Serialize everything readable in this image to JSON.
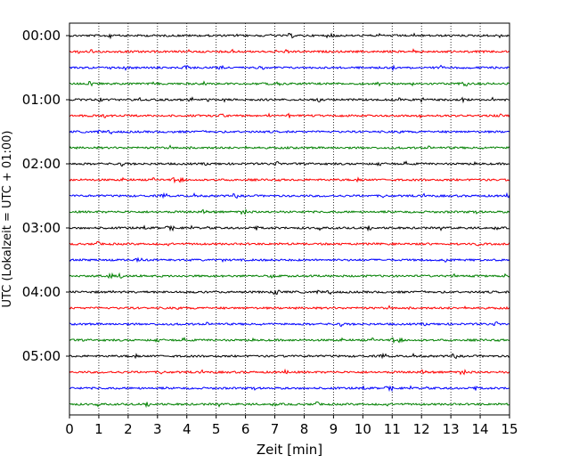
{
  "chart_data": {
    "type": "line",
    "subtype": "helicorder",
    "title": "",
    "xlabel": "Zeit  [min]",
    "ylabel": "UTC (Lokalzeit = UTC + 01:00)",
    "xlim": [
      0,
      15
    ],
    "x_ticks": [
      "0",
      "1",
      "2",
      "3",
      "4",
      "5",
      "6",
      "7",
      "8",
      "9",
      "10",
      "11",
      "12",
      "13",
      "14",
      "15"
    ],
    "y_tick_labels": [
      "00:00",
      "01:00",
      "02:00",
      "03:00",
      "04:00",
      "05:00"
    ],
    "trace_interval_min": 15,
    "trace_count": 24,
    "trace_colors": [
      "#000000",
      "#ff0000",
      "#0000ff",
      "#008000"
    ],
    "grid": "vertical dotted",
    "legend": "none"
  }
}
